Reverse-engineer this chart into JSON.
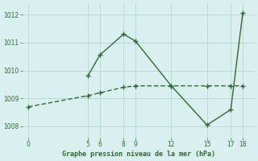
{
  "line1_x": [
    5,
    6,
    8,
    9,
    12,
    15,
    17,
    18
  ],
  "line1_y": [
    1009.8,
    1010.55,
    1011.3,
    1011.05,
    1009.45,
    1008.05,
    1008.6,
    1012.05
  ],
  "line2_x": [
    0,
    5,
    6,
    8,
    9,
    12,
    15,
    17,
    18
  ],
  "line2_y": [
    1008.7,
    1009.1,
    1009.2,
    1009.4,
    1009.45,
    1009.45,
    1009.45,
    1009.45,
    1009.45
  ],
  "line_color": "#2d6a2d",
  "bg_color": "#d9f0f0",
  "grid_color": "#b8d8d8",
  "xlabel": "Graphe pression niveau de la mer (hPa)",
  "xlim": [
    -0.5,
    19
  ],
  "ylim": [
    1007.6,
    1012.4
  ],
  "yticks": [
    1008,
    1009,
    1010,
    1011,
    1012
  ],
  "xticks": [
    0,
    5,
    6,
    8,
    9,
    12,
    15,
    17,
    18
  ],
  "markersize": 3,
  "linewidth": 1.0
}
